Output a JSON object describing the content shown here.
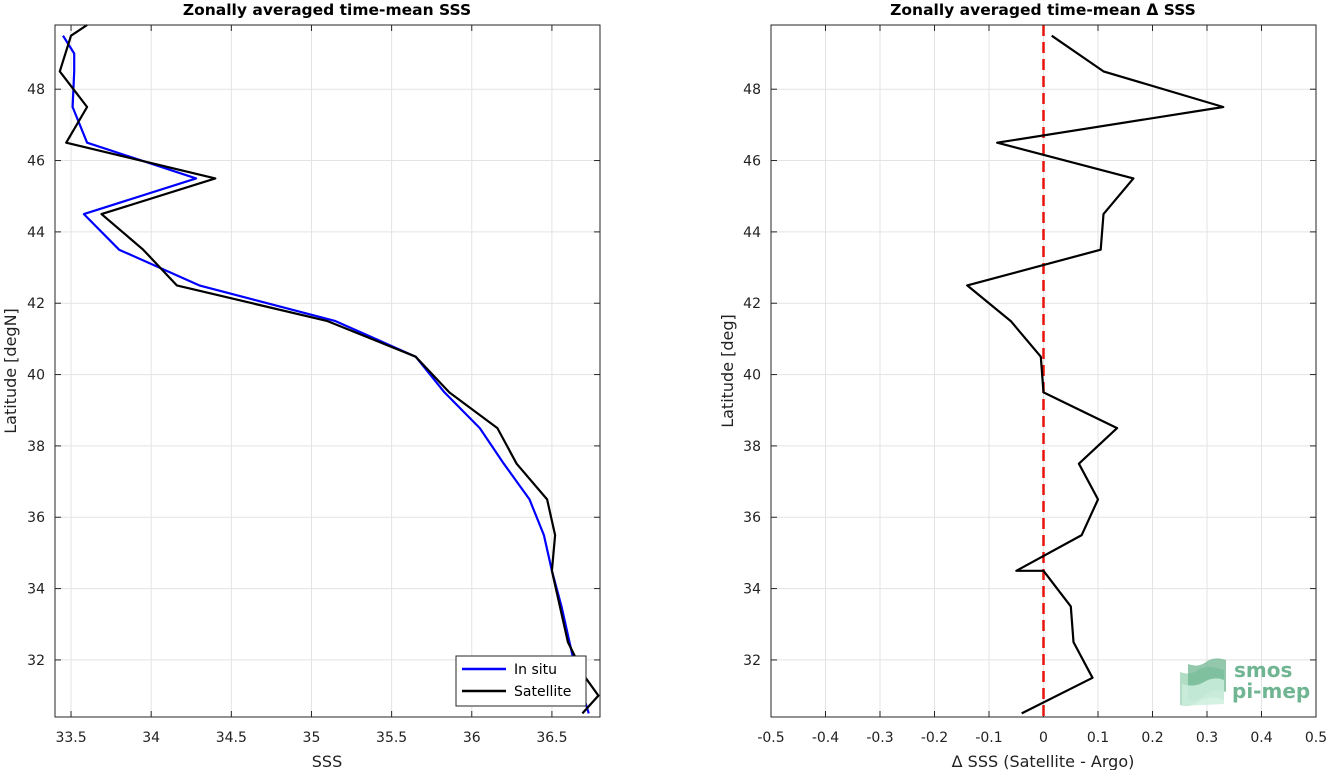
{
  "chart_data": [
    {
      "type": "line",
      "title": "Zonally averaged time-mean SSS",
      "xlabel": "SSS",
      "ylabel": "Latitude [degN]",
      "xlim": [
        33.4,
        36.8
      ],
      "ylim": [
        30.4,
        49.8
      ],
      "xticks": [
        33.5,
        34,
        34.5,
        35,
        35.5,
        36,
        36.5
      ],
      "xtick_labels": [
        "33.5",
        "34",
        "34.5",
        "35",
        "35.5",
        "36",
        "36.5"
      ],
      "yticks": [
        32,
        34,
        36,
        38,
        40,
        42,
        44,
        46,
        48
      ],
      "ytick_labels": [
        "32",
        "34",
        "36",
        "38",
        "40",
        "42",
        "44",
        "46",
        "48"
      ],
      "grid": true,
      "legend_position": "bottom-right",
      "series": [
        {
          "name": "In situ",
          "color": "#0000ff",
          "x": [
            36.73,
            36.66,
            36.61,
            36.56,
            36.5,
            36.45,
            36.36,
            36.2,
            36.05,
            35.83,
            35.65,
            35.15,
            34.3,
            33.8,
            33.58,
            34.28,
            33.6,
            33.51,
            33.52,
            33.52,
            33.45
          ],
          "y": [
            30.5,
            31.5,
            32.5,
            33.5,
            34.5,
            35.5,
            36.5,
            37.5,
            38.5,
            39.5,
            40.5,
            41.5,
            42.5,
            43.5,
            44.5,
            45.5,
            46.5,
            47.5,
            48.5,
            49.0,
            49.5
          ]
        },
        {
          "name": "Satellite",
          "color": "#000000",
          "x": [
            36.69,
            36.79,
            36.71,
            36.6,
            36.5,
            36.52,
            36.47,
            36.28,
            36.16,
            35.86,
            35.65,
            35.1,
            34.16,
            33.95,
            33.69,
            34.4,
            33.47,
            33.6,
            33.43,
            33.5,
            33.6
          ],
          "y": [
            30.5,
            31.0,
            31.5,
            32.5,
            34.5,
            35.5,
            36.5,
            37.5,
            38.5,
            39.5,
            40.5,
            41.5,
            42.5,
            43.5,
            44.5,
            45.5,
            46.5,
            47.5,
            48.5,
            49.5,
            49.8
          ]
        }
      ]
    },
    {
      "type": "line",
      "title": "Zonally averaged time-mean Δ SSS",
      "xlabel": "Δ SSS (Satellite - Argo)",
      "ylabel": "Latitude [deg]",
      "xlim": [
        -0.5,
        0.5
      ],
      "ylim": [
        30.4,
        49.8
      ],
      "xticks": [
        -0.5,
        -0.4,
        -0.3,
        -0.2,
        -0.1,
        0,
        0.1,
        0.2,
        0.3,
        0.4,
        0.5
      ],
      "xtick_labels": [
        "-0.5",
        "-0.4",
        "-0.3",
        "-0.2",
        "-0.1",
        "0",
        "0.1",
        "0.2",
        "0.3",
        "0.4",
        "0.5"
      ],
      "yticks": [
        32,
        34,
        36,
        38,
        40,
        42,
        44,
        46,
        48
      ],
      "ytick_labels": [
        "32",
        "34",
        "36",
        "38",
        "40",
        "42",
        "44",
        "46",
        "48"
      ],
      "grid": true,
      "reference_line": {
        "x": 0,
        "color": "#e8140c",
        "style": "dashed"
      },
      "series": [
        {
          "color": "#000000",
          "x": [
            -0.04,
            0.09,
            0.055,
            0.05,
            0.0,
            -0.05,
            0.07,
            0.1,
            0.065,
            0.135,
            0.0,
            -0.005,
            -0.06,
            -0.14,
            0.105,
            0.11,
            0.165,
            -0.085,
            0.33,
            0.11,
            0.015
          ],
          "y": [
            30.5,
            31.5,
            32.5,
            33.5,
            34.5,
            34.5,
            35.5,
            36.5,
            37.5,
            38.5,
            39.5,
            40.5,
            41.5,
            42.5,
            43.5,
            44.5,
            45.5,
            46.5,
            47.5,
            48.5,
            49.5
          ]
        }
      ]
    }
  ],
  "logo": {
    "line1": "smos",
    "line2": "pi-mep",
    "color": "#6fb592"
  }
}
